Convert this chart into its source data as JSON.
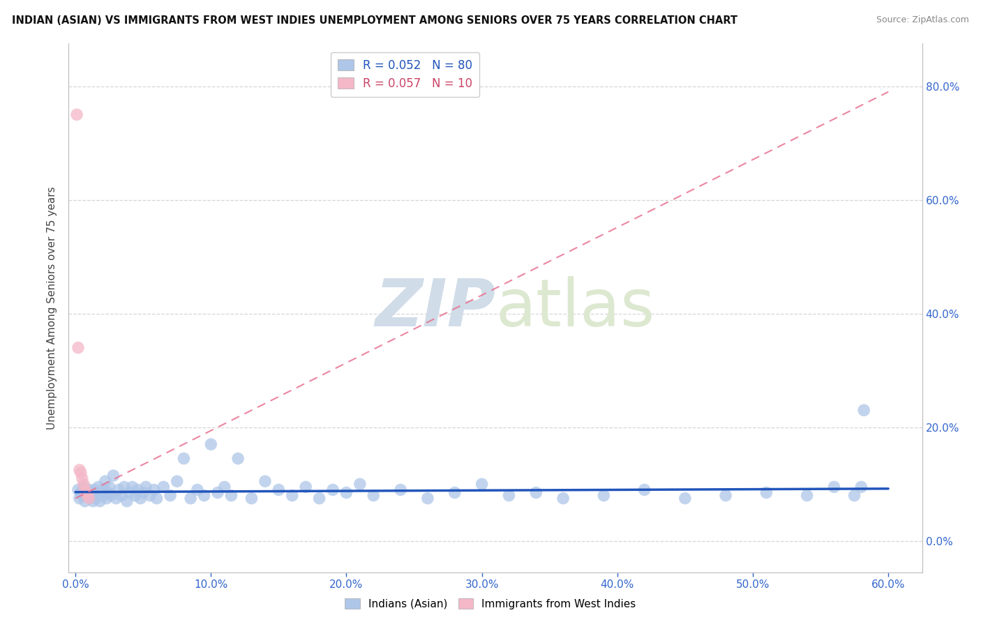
{
  "title": "INDIAN (ASIAN) VS IMMIGRANTS FROM WEST INDIES UNEMPLOYMENT AMONG SENIORS OVER 75 YEARS CORRELATION CHART",
  "source": "Source: ZipAtlas.com",
  "ylabel": "Unemployment Among Seniors over 75 years",
  "legend1_label": "R = 0.052   N = 80",
  "legend2_label": "R = 0.057   N = 10",
  "blue_color": "#aec6e8",
  "pink_color": "#f4b8c8",
  "blue_line_color": "#2255bb",
  "pink_line_color": "#e87090",
  "watermark_zip": "ZIP",
  "watermark_atlas": "atlas",
  "xlim": [
    -0.005,
    0.625
  ],
  "ylim": [
    -0.055,
    0.875
  ],
  "x_tick_vals": [
    0.0,
    0.1,
    0.2,
    0.3,
    0.4,
    0.5,
    0.6
  ],
  "x_tick_labels": [
    "0.0%",
    "10.0%",
    "20.0%",
    "30.0%",
    "40.0%",
    "50.0%",
    "60.0%"
  ],
  "y_tick_vals": [
    0.0,
    0.2,
    0.4,
    0.6,
    0.8
  ],
  "y_tick_labels": [
    "0.0%",
    "20.0%",
    "40.0%",
    "60.0%",
    "80.0%"
  ],
  "blue_x": [
    0.002,
    0.003,
    0.004,
    0.005,
    0.006,
    0.007,
    0.008,
    0.009,
    0.01,
    0.011,
    0.012,
    0.013,
    0.014,
    0.015,
    0.016,
    0.017,
    0.018,
    0.019,
    0.02,
    0.021,
    0.022,
    0.023,
    0.024,
    0.025,
    0.026,
    0.028,
    0.03,
    0.032,
    0.034,
    0.036,
    0.038,
    0.04,
    0.042,
    0.044,
    0.046,
    0.048,
    0.05,
    0.052,
    0.055,
    0.058,
    0.06,
    0.065,
    0.07,
    0.075,
    0.08,
    0.085,
    0.09,
    0.095,
    0.1,
    0.105,
    0.11,
    0.115,
    0.12,
    0.13,
    0.14,
    0.15,
    0.16,
    0.17,
    0.18,
    0.19,
    0.2,
    0.21,
    0.22,
    0.24,
    0.26,
    0.28,
    0.3,
    0.32,
    0.34,
    0.36,
    0.39,
    0.42,
    0.45,
    0.48,
    0.51,
    0.54,
    0.56,
    0.575,
    0.58,
    0.582
  ],
  "blue_y": [
    0.09,
    0.075,
    0.085,
    0.08,
    0.095,
    0.07,
    0.085,
    0.08,
    0.09,
    0.075,
    0.085,
    0.07,
    0.09,
    0.075,
    0.085,
    0.095,
    0.07,
    0.085,
    0.08,
    0.09,
    0.105,
    0.075,
    0.085,
    0.095,
    0.08,
    0.115,
    0.075,
    0.09,
    0.08,
    0.095,
    0.07,
    0.085,
    0.095,
    0.08,
    0.09,
    0.075,
    0.085,
    0.095,
    0.08,
    0.09,
    0.075,
    0.095,
    0.08,
    0.105,
    0.145,
    0.075,
    0.09,
    0.08,
    0.17,
    0.085,
    0.095,
    0.08,
    0.145,
    0.075,
    0.105,
    0.09,
    0.08,
    0.095,
    0.075,
    0.09,
    0.085,
    0.1,
    0.08,
    0.09,
    0.075,
    0.085,
    0.1,
    0.08,
    0.085,
    0.075,
    0.08,
    0.09,
    0.075,
    0.08,
    0.085,
    0.08,
    0.095,
    0.08,
    0.095,
    0.23
  ],
  "pink_x": [
    0.001,
    0.002,
    0.003,
    0.004,
    0.005,
    0.006,
    0.007,
    0.008,
    0.009,
    0.01
  ],
  "pink_y": [
    0.75,
    0.34,
    0.125,
    0.12,
    0.11,
    0.1,
    0.09,
    0.085,
    0.08,
    0.075
  ],
  "blue_line_x": [
    0.0,
    0.6
  ],
  "blue_line_y": [
    0.086,
    0.092
  ],
  "pink_line_x": [
    0.0,
    0.6
  ],
  "pink_line_y": [
    0.075,
    0.79
  ]
}
